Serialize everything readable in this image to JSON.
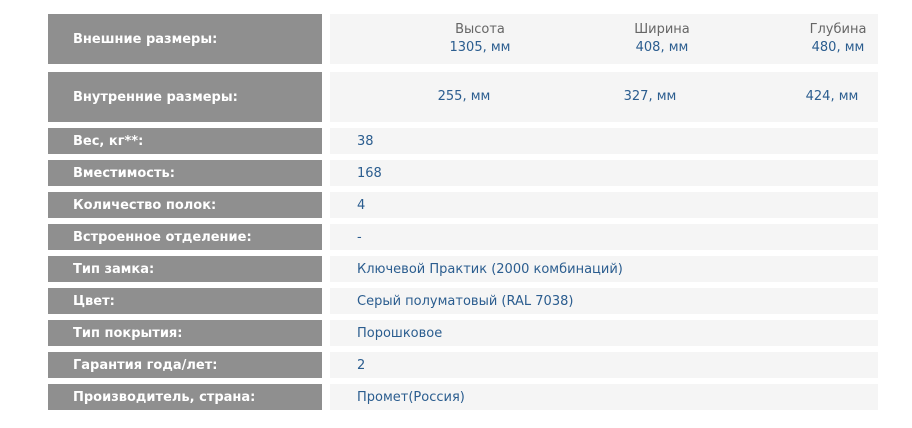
{
  "outer": {
    "label": "Внешние размеры:",
    "dims": [
      {
        "header": "Высота",
        "value": "1305, мм"
      },
      {
        "header": "Ширина",
        "value": "408, мм"
      },
      {
        "header": "Глубина",
        "value": "480, мм"
      }
    ]
  },
  "inner": {
    "label": "Внутренние размеры:",
    "values": [
      "255, мм",
      "327, мм",
      "424, мм"
    ]
  },
  "rows": [
    {
      "label": "Вес, кг**:",
      "value": "38"
    },
    {
      "label": "Вместимость:",
      "value": "168"
    },
    {
      "label": "Количество полок:",
      "value": "4"
    },
    {
      "label": "Встроенное отделение:",
      "value": "-"
    },
    {
      "label": "Тип замка:",
      "value": "Ключевой Практик (2000 комбинаций)"
    },
    {
      "label": "Цвет:",
      "value": "Серый полуматовый (RAL 7038)"
    },
    {
      "label": "Тип покрытия:",
      "value": "Порошковое"
    },
    {
      "label": "Гарантия года/лет:",
      "value": "2"
    },
    {
      "label": "Производитель, страна:",
      "value": "Промет(Россия)"
    }
  ]
}
